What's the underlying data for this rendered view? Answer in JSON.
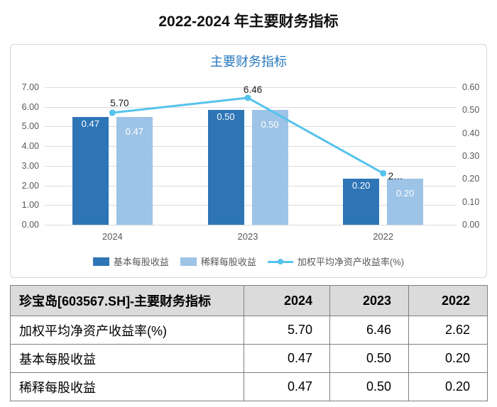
{
  "page_title": "2022-2024 年主要财务指标",
  "chart_data": {
    "type": "combo",
    "title": "主要财务指标",
    "categories": [
      "2024",
      "2023",
      "2022"
    ],
    "series": [
      {
        "name": "基本每股收益",
        "kind": "bar",
        "axis": "right",
        "values": [
          0.47,
          0.5,
          0.2
        ],
        "labels": [
          "0.47",
          "0.50",
          "0.20"
        ],
        "color": "#2E75B6"
      },
      {
        "name": "稀释每股收益",
        "kind": "bar",
        "axis": "right",
        "values": [
          0.47,
          0.5,
          0.2
        ],
        "labels": [
          "0.47",
          "0.50",
          "0.20"
        ],
        "color": "#9DC3E6"
      },
      {
        "name": "加权平均净资产收益率(%)",
        "kind": "line",
        "axis": "left",
        "values": [
          5.7,
          6.46,
          2.62
        ],
        "labels": [
          "5.70",
          "6.46",
          "2…"
        ],
        "color": "#55C3EC"
      }
    ],
    "left_axis": {
      "min": 0,
      "max": 7,
      "ticks": [
        "7.00",
        "6.00",
        "5.00",
        "4.00",
        "3.00",
        "2.00",
        "1.00",
        "0.00"
      ]
    },
    "right_axis": {
      "min": 0,
      "max": 0.6,
      "ticks": [
        "0.60",
        "0.50",
        "0.40",
        "0.30",
        "0.20",
        "0.10",
        "0.00"
      ]
    },
    "legend_position": "bottom",
    "grid": true
  },
  "table": {
    "header": [
      "珍宝岛[603567.SH]-主要财务指标",
      "2024",
      "2023",
      "2022"
    ],
    "rows": [
      [
        "加权平均净资产收益率(%)",
        "5.70",
        "6.46",
        "2.62"
      ],
      [
        "基本每股收益",
        "0.47",
        "0.50",
        "0.20"
      ],
      [
        "稀释每股收益",
        "0.47",
        "0.50",
        "0.20"
      ]
    ]
  },
  "colors": {
    "accent_blue": "#2878BD",
    "bar_dark": "#2E75B6",
    "bar_light": "#9DC3E6",
    "line": "#55C3EC",
    "axis_text": "#595959",
    "grid": "#DCDCDC",
    "table_border": "#7F7F7F",
    "table_header_bg": "#DBDBDB"
  }
}
